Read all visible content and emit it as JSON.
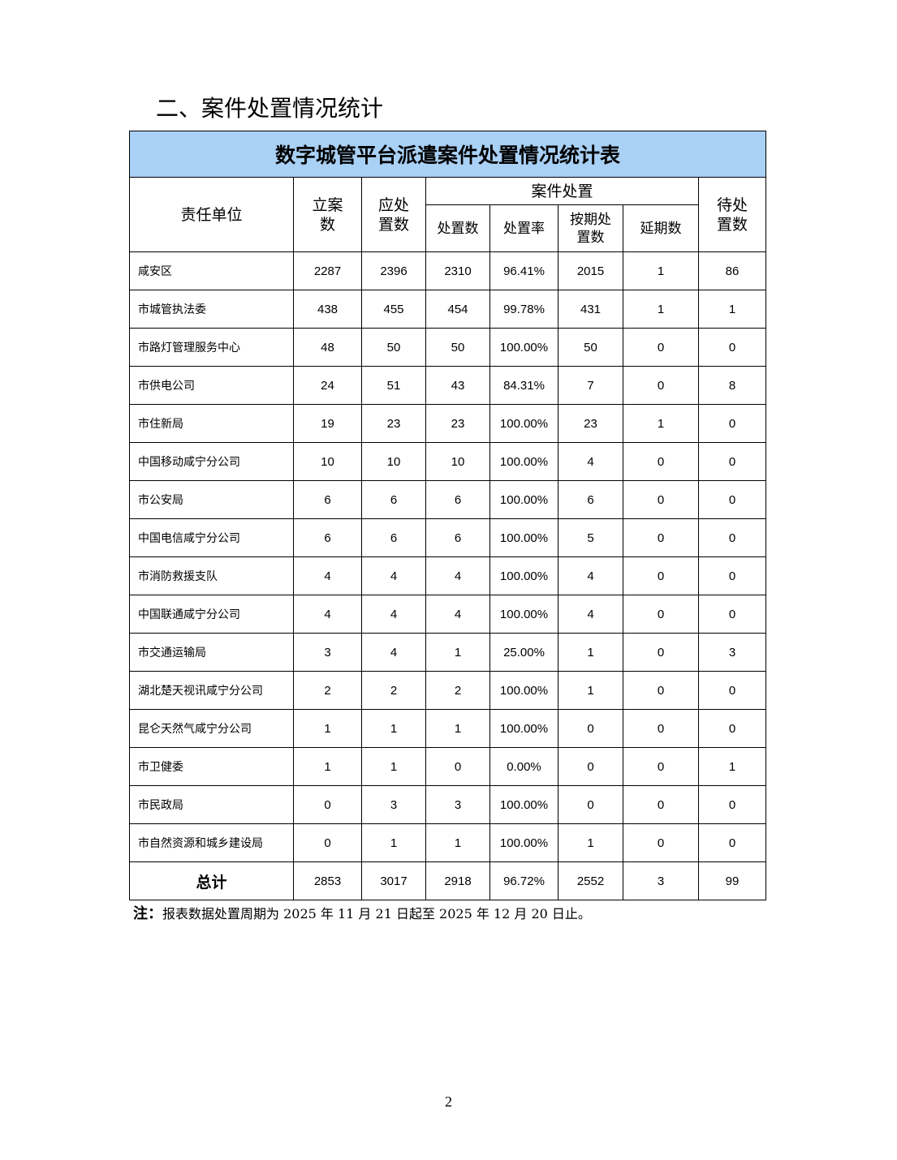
{
  "section_heading": "二、案件处置情况统计",
  "table": {
    "title": "数字城管平台派遣案件处置情况统计表",
    "headers": {
      "unit": "责任单位",
      "filed": "立案数",
      "due": "应处置数",
      "group": "案件处置",
      "handled": "处置数",
      "rate": "处置率",
      "ontime": "按期处置数",
      "delayed": "延期数",
      "pending": "待处置数"
    },
    "rows": [
      [
        "咸安区",
        "2287",
        "2396",
        "2310",
        "96.41%",
        "2015",
        "1",
        "86"
      ],
      [
        "市城管执法委",
        "438",
        "455",
        "454",
        "99.78%",
        "431",
        "1",
        "1"
      ],
      [
        "市路灯管理服务中心",
        "48",
        "50",
        "50",
        "100.00%",
        "50",
        "0",
        "0"
      ],
      [
        "市供电公司",
        "24",
        "51",
        "43",
        "84.31%",
        "7",
        "0",
        "8"
      ],
      [
        "市住新局",
        "19",
        "23",
        "23",
        "100.00%",
        "23",
        "1",
        "0"
      ],
      [
        "中国移动咸宁分公司",
        "10",
        "10",
        "10",
        "100.00%",
        "4",
        "0",
        "0"
      ],
      [
        "市公安局",
        "6",
        "6",
        "6",
        "100.00%",
        "6",
        "0",
        "0"
      ],
      [
        "中国电信咸宁分公司",
        "6",
        "6",
        "6",
        "100.00%",
        "5",
        "0",
        "0"
      ],
      [
        "市消防救援支队",
        "4",
        "4",
        "4",
        "100.00%",
        "4",
        "0",
        "0"
      ],
      [
        "中国联通咸宁分公司",
        "4",
        "4",
        "4",
        "100.00%",
        "4",
        "0",
        "0"
      ],
      [
        "市交通运输局",
        "3",
        "4",
        "1",
        "25.00%",
        "1",
        "0",
        "3"
      ],
      [
        "湖北楚天视讯咸宁分公司",
        "2",
        "2",
        "2",
        "100.00%",
        "1",
        "0",
        "0"
      ],
      [
        "昆仑天然气咸宁分公司",
        "1",
        "1",
        "1",
        "100.00%",
        "0",
        "0",
        "0"
      ],
      [
        "市卫健委",
        "1",
        "1",
        "0",
        "0.00%",
        "0",
        "0",
        "1"
      ],
      [
        "市民政局",
        "0",
        "3",
        "3",
        "100.00%",
        "0",
        "0",
        "0"
      ],
      [
        "市自然资源和城乡建设局",
        "0",
        "1",
        "1",
        "100.00%",
        "1",
        "0",
        "0"
      ]
    ],
    "total": [
      "总计",
      "2853",
      "3017",
      "2918",
      "96.72%",
      "2552",
      "3",
      "99"
    ]
  },
  "note_label": "注：",
  "note_text": "报表数据处置周期为 2025 年 11 月 21 日起至 2025 年 12 月 20 日止。",
  "page_number": "2",
  "colors": {
    "title_bg": "#a9d0f5"
  }
}
